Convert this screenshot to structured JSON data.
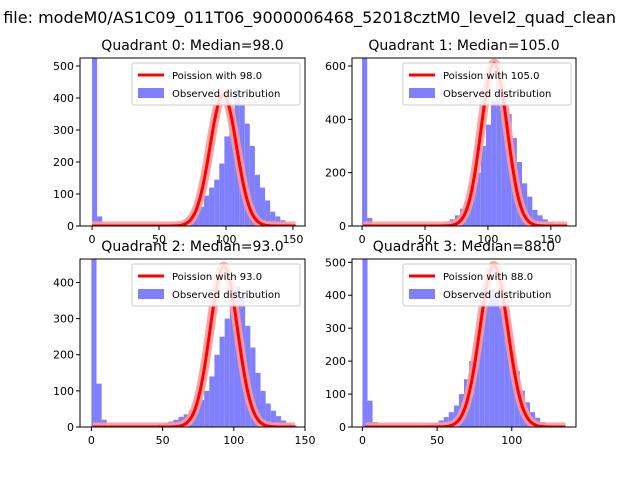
{
  "figure": {
    "suptitle": "n file: modeM0/AS1C09_011T06_9000006468_52018cztM0_level2_quad_clean"
  },
  "chart_data": [
    {
      "type": "bar",
      "title": "Quadrant 0: Median=98.0",
      "xlim": [
        -9,
        159
      ],
      "ylim": [
        0,
        525
      ],
      "xticks": [
        0,
        50,
        100,
        150
      ],
      "xtick_labels": [
        "0",
        "50",
        "100",
        "150"
      ],
      "yticks": [
        0,
        100,
        200,
        300,
        400,
        500
      ],
      "ytick_labels": [
        "0",
        "100",
        "200",
        "300",
        "400",
        "500"
      ],
      "bin_width": 3.8,
      "bins_start": 0,
      "histogram": [
        525,
        30,
        3,
        2,
        2,
        2,
        2,
        2,
        2,
        3,
        3,
        3,
        3,
        5,
        2,
        7,
        9,
        12,
        18,
        25,
        35,
        60,
        95,
        120,
        145,
        195,
        280,
        340,
        420,
        380,
        320,
        250,
        160,
        120,
        80,
        45,
        30,
        18,
        10,
        5
      ],
      "poisson_mean": 98.0,
      "poisson_peak": 410,
      "legend": {
        "poisson": "Poission with 98.0",
        "observed": "Observed distribution",
        "loc": "upper-right"
      }
    },
    {
      "type": "bar",
      "title": "Quadrant 1: Median=105.0",
      "xlim": [
        -8,
        170
      ],
      "ylim": [
        0,
        630
      ],
      "xticks": [
        0,
        50,
        100,
        150
      ],
      "xtick_labels": [
        "0",
        "50",
        "100",
        "150"
      ],
      "yticks": [
        0,
        200,
        400,
        600
      ],
      "ytick_labels": [
        "0",
        "200",
        "400",
        "600"
      ],
      "bin_width": 4.1,
      "bins_start": 0,
      "histogram": [
        630,
        30,
        2,
        2,
        2,
        3,
        2,
        2,
        2,
        3,
        3,
        5,
        4,
        8,
        5,
        8,
        15,
        25,
        40,
        65,
        95,
        150,
        200,
        300,
        380,
        470,
        560,
        480,
        420,
        330,
        240,
        160,
        110,
        60,
        40,
        25,
        15,
        8,
        4,
        3
      ],
      "poisson_mean": 105.0,
      "poisson_peak": 610,
      "legend": {
        "poisson": "Poission with 105.0",
        "observed": "Observed distribution",
        "loc": "upper-right"
      }
    },
    {
      "type": "bar",
      "title": "Quadrant 2: Median=93.0",
      "xlim": [
        -8,
        150
      ],
      "ylim": [
        0,
        465
      ],
      "xticks": [
        0,
        50,
        100,
        150
      ],
      "xtick_labels": [
        "0",
        "50",
        "100",
        "150"
      ],
      "yticks": [
        0,
        100,
        200,
        300,
        400
      ],
      "ytick_labels": [
        "0",
        "100",
        "200",
        "300",
        "400"
      ],
      "bin_width": 3.6,
      "bins_start": 0,
      "histogram": [
        465,
        120,
        20,
        3,
        2,
        2,
        2,
        3,
        2,
        3,
        4,
        5,
        5,
        8,
        10,
        15,
        20,
        28,
        35,
        45,
        55,
        75,
        100,
        140,
        200,
        250,
        300,
        350,
        390,
        360,
        280,
        220,
        150,
        100,
        65,
        45,
        30,
        18,
        10,
        5
      ],
      "poisson_mean": 93.0,
      "poisson_peak": 445,
      "legend": {
        "poisson": "Poission with 93.0",
        "observed": "Observed distribution",
        "loc": "upper-right"
      }
    },
    {
      "type": "bar",
      "title": "Quadrant 3: Median=88.0",
      "xlim": [
        -7,
        143
      ],
      "ylim": [
        0,
        510
      ],
      "xticks": [
        0,
        50,
        100
      ],
      "xtick_labels": [
        "0",
        "50",
        "100"
      ],
      "yticks": [
        0,
        100,
        200,
        300,
        400,
        500
      ],
      "ytick_labels": [
        "0",
        "100",
        "200",
        "300",
        "400",
        "500"
      ],
      "bin_width": 3.4,
      "bins_start": 0,
      "histogram": [
        510,
        80,
        15,
        3,
        2,
        2,
        2,
        3,
        2,
        3,
        5,
        5,
        6,
        10,
        12,
        20,
        30,
        45,
        65,
        100,
        145,
        200,
        260,
        330,
        380,
        420,
        400,
        360,
        300,
        230,
        170,
        110,
        75,
        45,
        28,
        15,
        8,
        4,
        2,
        2
      ],
      "poisson_mean": 88.0,
      "poisson_peak": 490,
      "legend": {
        "poisson": "Poission with 88.0",
        "observed": "Observed distribution",
        "loc": "upper-right"
      }
    }
  ],
  "colors": {
    "histogram": "#8080ff",
    "poisson_line": "#ff0000",
    "poisson_halo": "#ff9a9a",
    "axes": "#000000"
  }
}
